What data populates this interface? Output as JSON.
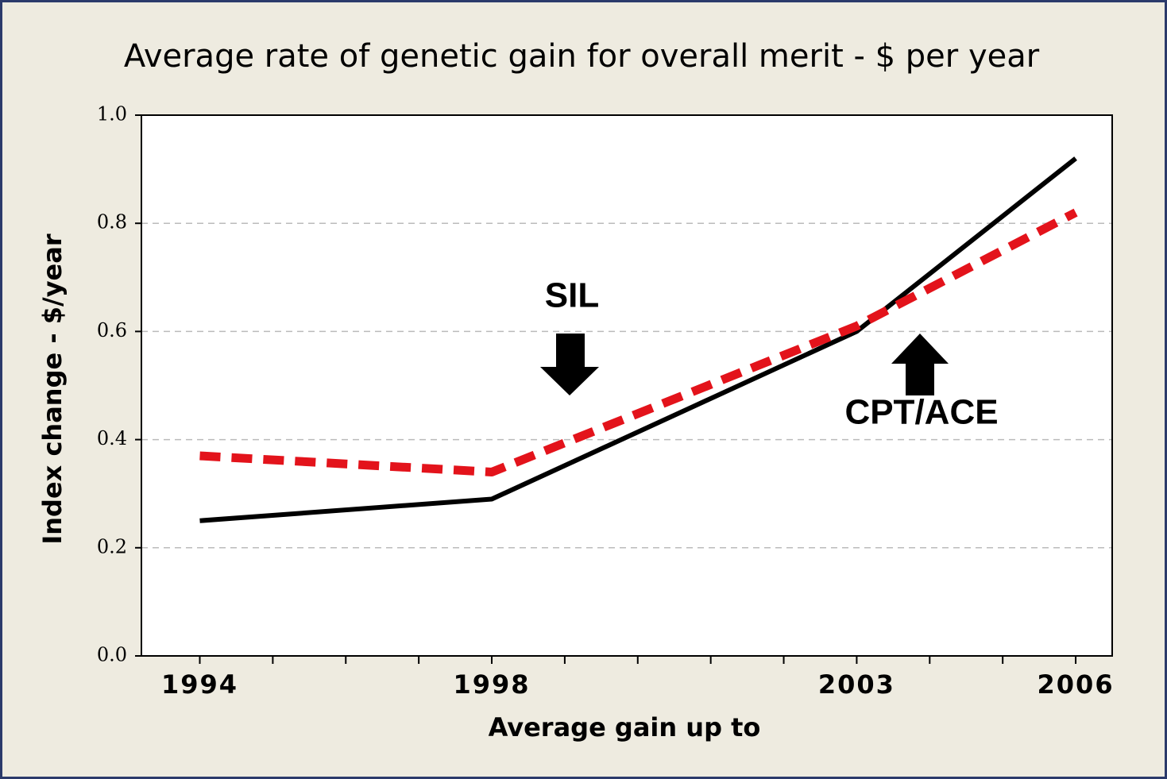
{
  "chart_data": {
    "type": "line",
    "title": "Average rate of genetic gain for overall merit - $ per year",
    "x_label": "Average gain up to",
    "y_label": "Index change - $/year",
    "x": [
      1994,
      1998,
      2003,
      2006
    ],
    "series": [
      {
        "color": "#000000",
        "style": "solid",
        "values": [
          0.25,
          0.29,
          0.6,
          0.92
        ]
      },
      {
        "color": "#e3131b",
        "style": "dashed",
        "values": [
          0.37,
          0.34,
          0.61,
          0.82
        ]
      }
    ],
    "xlim": [
      1993.2,
      2006.5
    ],
    "xticks": [
      1994,
      1998,
      2003,
      2006
    ],
    "xminorticks": [
      1995,
      1996,
      1997,
      1999,
      2000,
      2001,
      2002,
      2004,
      2005
    ],
    "ylim": [
      0,
      1
    ],
    "yticks": [
      {
        "value": 0,
        "label": "0.0"
      },
      0.2,
      0.4,
      0.6,
      0.8,
      {
        "value": 1,
        "label": "1.0"
      }
    ],
    "grid": true,
    "annotations": [
      "SIL",
      "CPT/ACE"
    ]
  }
}
